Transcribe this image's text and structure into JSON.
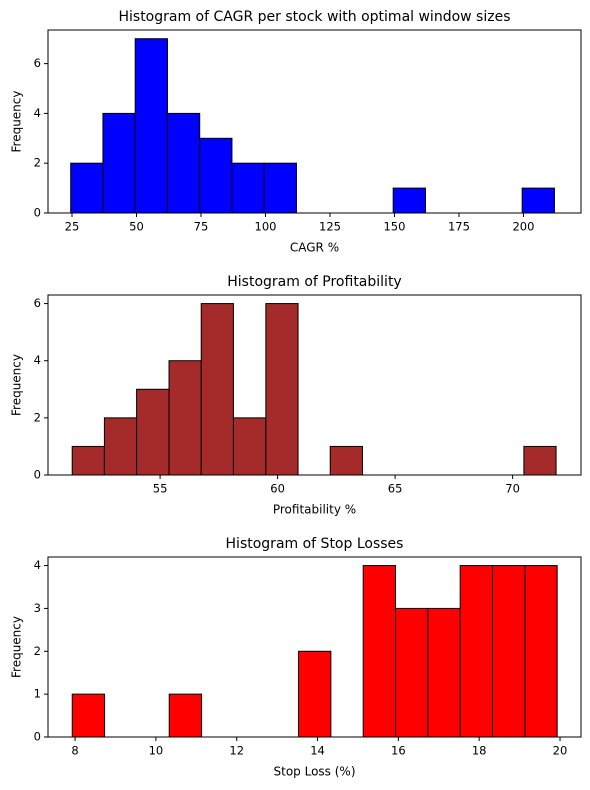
{
  "chart_data": [
    {
      "type": "histogram",
      "title": "Histogram of CAGR per stock with optimal window sizes",
      "x_label": "CAGR %",
      "y_label": "Frequency",
      "color": "#0000ff",
      "bins": [
        24.5,
        37,
        49.5,
        62,
        74.5,
        87,
        99.5,
        112,
        124.5,
        137,
        149.5,
        162,
        174.5,
        187,
        199.5,
        212
      ],
      "values": [
        2,
        4,
        7,
        4,
        3,
        2,
        2,
        0,
        0,
        0,
        1,
        0,
        0,
        0,
        1
      ],
      "xlim": [
        15.7,
        222.3
      ],
      "xticks": [
        25,
        50,
        75,
        100,
        125,
        150,
        175,
        200
      ],
      "ylim": [
        0,
        7.35
      ],
      "yticks": [
        0,
        2,
        4,
        6
      ]
    },
    {
      "type": "histogram",
      "title": "Histogram of Profitability",
      "x_label": "Profitability %",
      "y_label": "Frequency",
      "color": "#a52a2a",
      "bins": [
        51.26,
        52.63,
        54.0,
        55.38,
        56.75,
        58.12,
        59.5,
        60.87,
        62.24,
        63.61,
        64.99,
        66.36,
        67.73,
        69.1,
        70.48,
        71.85
      ],
      "values": [
        1,
        2,
        3,
        4,
        6,
        2,
        6,
        0,
        1,
        0,
        0,
        0,
        0,
        0,
        1
      ],
      "xlim": [
        50.23,
        72.91
      ],
      "xticks": [
        55,
        60,
        65,
        70
      ],
      "ylim": [
        0,
        6.3
      ],
      "yticks": [
        0,
        2,
        4,
        6
      ]
    },
    {
      "type": "histogram",
      "title": "Histogram of Stop Losses",
      "x_label": "Stop Loss (%)",
      "y_label": "Frequency",
      "color": "#ff0000",
      "bins": [
        7.93,
        8.73,
        9.53,
        10.33,
        11.13,
        11.93,
        12.73,
        13.53,
        14.33,
        15.13,
        15.93,
        16.73,
        17.53,
        18.33,
        19.13,
        19.93
      ],
      "values": [
        1,
        0,
        0,
        1,
        0,
        0,
        0,
        2,
        0,
        4,
        3,
        3,
        4,
        4,
        4
      ],
      "xlim": [
        7.33,
        20.52
      ],
      "xticks": [
        8,
        10,
        12,
        14,
        16,
        18,
        20
      ],
      "ylim": [
        0,
        4.2
      ],
      "yticks": [
        0,
        1,
        2,
        3,
        4
      ]
    }
  ]
}
